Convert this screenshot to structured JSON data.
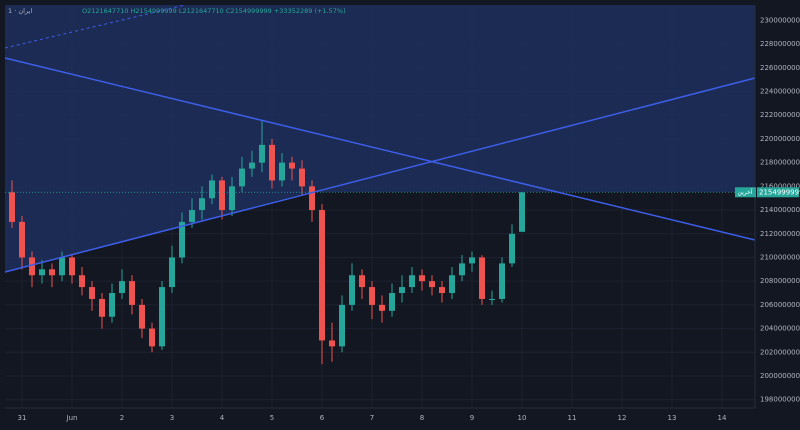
{
  "chart_data": {
    "type": "candlestick",
    "symbol": "1 · ایران",
    "ohlc_header": "O2121647710 H2154999999 L2121647710 C2154999999 +33352289 (+1.57%)",
    "price_tag_label": "آخرین",
    "up_color": "#26a69a",
    "down_color": "#ef5350",
    "grid": true,
    "xlim": [
      -0.34,
      14.66
    ],
    "xticks": [
      {
        "value": 0,
        "label": "31"
      },
      {
        "value": 1,
        "label": "Jun"
      },
      {
        "value": 2,
        "label": "2"
      },
      {
        "value": 3,
        "label": "3"
      },
      {
        "value": 4,
        "label": "4"
      },
      {
        "value": 5,
        "label": "5"
      },
      {
        "value": 6,
        "label": "6"
      },
      {
        "value": 7,
        "label": "7"
      },
      {
        "value": 8,
        "label": "8"
      },
      {
        "value": 9,
        "label": "9"
      },
      {
        "value": 10,
        "label": "10"
      },
      {
        "value": 11,
        "label": "11"
      },
      {
        "value": 12,
        "label": "12"
      },
      {
        "value": 13,
        "label": "13"
      },
      {
        "value": 14,
        "label": "14"
      }
    ],
    "ylim": [
      1973000000,
      2313000000
    ],
    "yticks": [
      1980000000,
      2000000000,
      2020000000,
      2040000000,
      2060000000,
      2080000000,
      2100000000,
      2120000000,
      2140000000,
      2160000000,
      2180000000,
      2200000000,
      2220000000,
      2240000000,
      2260000000,
      2280000000,
      2300000000
    ],
    "x": [
      -0.2,
      0,
      0.2,
      0.4,
      0.6,
      0.8,
      1,
      1.2,
      1.4,
      1.6,
      1.8,
      2,
      2.2,
      2.4,
      2.6,
      2.8,
      3,
      3.2,
      3.4,
      3.6,
      3.8,
      4,
      4.2,
      4.4,
      4.6,
      4.8,
      5,
      5.2,
      5.4,
      5.6,
      5.8,
      6,
      6.2,
      6.4,
      6.6,
      6.8,
      7,
      7.2,
      7.4,
      7.6,
      7.8,
      8,
      8.2,
      8.4,
      8.6,
      8.8,
      9,
      9.2,
      9.4,
      9.6,
      9.8,
      10
    ],
    "open": [
      2155000000.0,
      2130000000.0,
      2100000000.0,
      2085000000.0,
      2090000000.0,
      2085000000.0,
      2100000000.0,
      2085000000.0,
      2075000000.0,
      2065000000.0,
      2050000000.0,
      2070000000.0,
      2080000000.0,
      2060000000.0,
      2040000000.0,
      2025000000.0,
      2075000000.0,
      2100000000.0,
      2130000000.0,
      2140000000.0,
      2150000000.0,
      2165000000.0,
      2140000000.0,
      2160000000.0,
      2175000000.0,
      2180000000.0,
      2195000000.0,
      2165000000.0,
      2180000000.0,
      2175000000.0,
      2160000000.0,
      2140000000.0,
      2030000000.0,
      2025000000.0,
      2060000000.0,
      2085000000.0,
      2075000000.0,
      2060000000.0,
      2055000000.0,
      2070000000.0,
      2075000000.0,
      2085000000.0,
      2080000000.0,
      2075000000.0,
      2070000000.0,
      2085000000.0,
      2095000000.0,
      2100000000.0,
      2065000000.0,
      2065000000.0,
      2095000000.0,
      2121647710
    ],
    "high": [
      2165000000.0,
      2135000000.0,
      2105000000.0,
      2098000000.0,
      2095000000.0,
      2105000000.0,
      2103000000.0,
      2092000000.0,
      2080000000.0,
      2070000000.0,
      2078000000.0,
      2090000000.0,
      2085000000.0,
      2065000000.0,
      2045000000.0,
      2080000000.0,
      2110000000.0,
      2138000000.0,
      2150000000.0,
      2160000000.0,
      2170000000.0,
      2168000000.0,
      2168000000.0,
      2185000000.0,
      2190000000.0,
      2215000000.0,
      2200000000.0,
      2188000000.0,
      2185000000.0,
      2182000000.0,
      2165000000.0,
      2145000000.0,
      2045000000.0,
      2068000000.0,
      2095000000.0,
      2090000000.0,
      2080000000.0,
      2068000000.0,
      2078000000.0,
      2085000000.0,
      2092000000.0,
      2090000000.0,
      2085000000.0,
      2080000000.0,
      2092000000.0,
      2102000000.0,
      2105000000.0,
      2102000000.0,
      2072000000.0,
      2100000000.0,
      2128000000.0,
      2154999999
    ],
    "low": [
      2125000000.0,
      2090000000.0,
      2075000000.0,
      2078000000.0,
      2075000000.0,
      2080000000.0,
      2078000000.0,
      2068000000.0,
      2055000000.0,
      2040000000.0,
      2045000000.0,
      2065000000.0,
      2052000000.0,
      2032000000.0,
      2020000000.0,
      2022000000.0,
      2070000000.0,
      2095000000.0,
      2125000000.0,
      2132000000.0,
      2145000000.0,
      2132000000.0,
      2135000000.0,
      2155000000.0,
      2168000000.0,
      2172000000.0,
      2158000000.0,
      2160000000.0,
      2165000000.0,
      2152000000.0,
      2130000000.0,
      2010000000.0,
      2012000000.0,
      2020000000.0,
      2055000000.0,
      2065000000.0,
      2048000000.0,
      2045000000.0,
      2050000000.0,
      2062000000.0,
      2070000000.0,
      2072000000.0,
      2068000000.0,
      2062000000.0,
      2065000000.0,
      2080000000.0,
      2088000000.0,
      2060000000.0,
      2060000000.0,
      2062000000.0,
      2092000000.0,
      2121647710
    ],
    "close": [
      2130000000.0,
      2100000000.0,
      2085000000.0,
      2090000000.0,
      2085000000.0,
      2100000000.0,
      2085000000.0,
      2075000000.0,
      2065000000.0,
      2050000000.0,
      2070000000.0,
      2080000000.0,
      2060000000.0,
      2040000000.0,
      2025000000.0,
      2075000000.0,
      2100000000.0,
      2130000000.0,
      2140000000.0,
      2150000000.0,
      2165000000.0,
      2140000000.0,
      2160000000.0,
      2175000000.0,
      2180000000.0,
      2195000000.0,
      2165000000.0,
      2180000000.0,
      2175000000.0,
      2160000000.0,
      2140000000.0,
      2030000000.0,
      2025000000.0,
      2060000000.0,
      2085000000.0,
      2075000000.0,
      2060000000.0,
      2055000000.0,
      2070000000.0,
      2075000000.0,
      2085000000.0,
      2080000000.0,
      2075000000.0,
      2070000000.0,
      2085000000.0,
      2095000000.0,
      2100000000.0,
      2065000000.0,
      2065000000.0,
      2095000000.0,
      2120000000.0,
      2154999999
    ]
  }
}
